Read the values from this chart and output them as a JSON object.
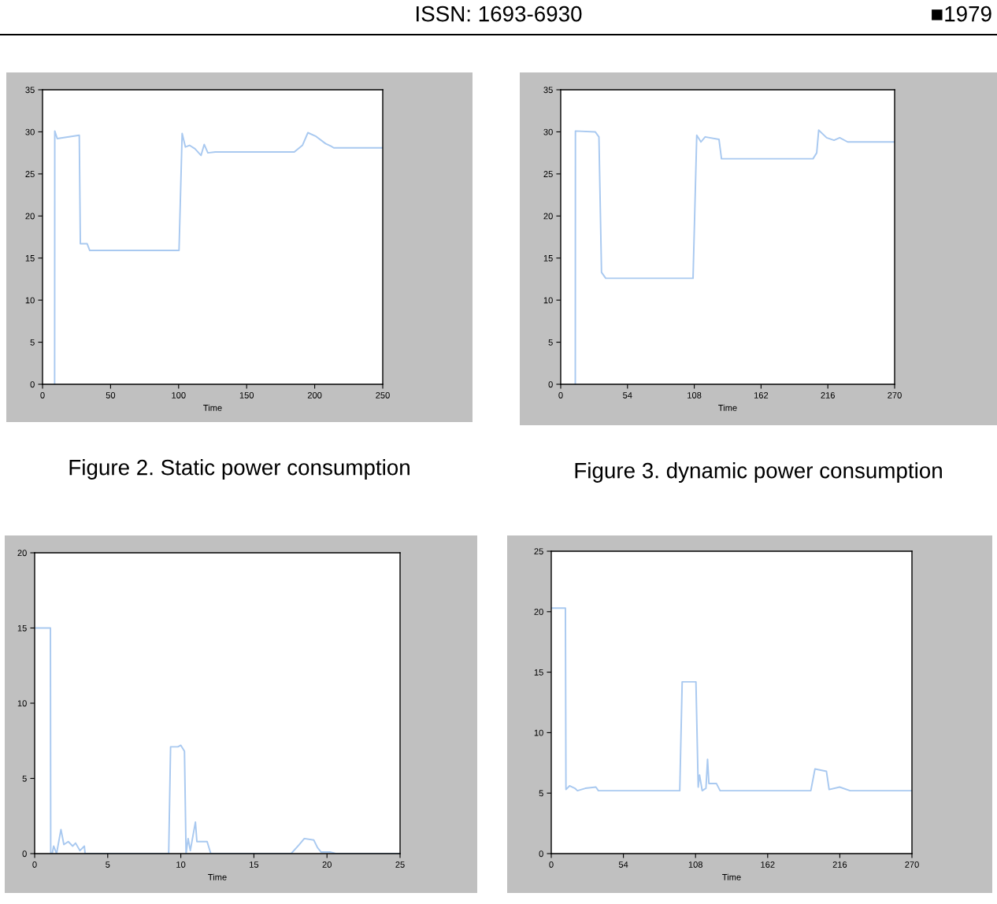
{
  "chart_data": [
    {
      "type": "line",
      "title": "Figure 2. Static power consumption",
      "xlabel": "Time",
      "annotations": [
        "ISSN: 1693-6930",
        "■1979"
      ],
      "xlim": [
        0,
        250
      ],
      "ylim": [
        0,
        35
      ],
      "xticks": [
        0,
        50,
        100,
        150,
        200,
        250
      ],
      "yticks": [
        0,
        5,
        10,
        15,
        20,
        25,
        30,
        35
      ],
      "series": [
        {
          "color": "#a9c9f0",
          "x": [
            8.9,
            9.0,
            10.8,
            27,
            27.8,
            32.8,
            34.7,
            100.3,
            102.6,
            105,
            108,
            112,
            116.5,
            118.8,
            121.5,
            127,
            185,
            191,
            195,
            200.6,
            208,
            212,
            214,
            250
          ],
          "values": [
            0,
            30.1,
            29.2,
            29.6,
            16.7,
            16.7,
            15.9,
            15.9,
            29.8,
            28.2,
            28.4,
            28,
            27.2,
            28.5,
            27.5,
            27.6,
            27.6,
            28.4,
            29.9,
            29.5,
            28.6,
            28.3,
            28.1,
            28.1
          ]
        }
      ]
    },
    {
      "type": "line",
      "title": "Figure 3. dynamic power consumption",
      "xlabel": "Time",
      "xlim": [
        0,
        270
      ],
      "ylim": [
        0,
        35
      ],
      "xticks": [
        0,
        54,
        108,
        162,
        216,
        270
      ],
      "yticks": [
        0,
        5,
        10,
        15,
        20,
        25,
        30,
        35
      ],
      "series": [
        {
          "color": "#a9c9f0",
          "x": [
            11.8,
            11.9,
            27.9,
            30.9,
            33,
            36.4,
            107,
            110,
            113.4,
            116.8,
            128,
            130,
            204,
            207,
            208.6,
            215,
            221,
            225.6,
            232,
            270
          ],
          "values": [
            0,
            30.1,
            30,
            29.4,
            13.3,
            12.6,
            12.6,
            29.6,
            28.8,
            29.4,
            29.1,
            26.8,
            26.8,
            27.5,
            30.2,
            29.3,
            29,
            29.3,
            28.8,
            28.8
          ]
        }
      ]
    },
    {
      "type": "line",
      "xlabel": "Time",
      "xlim": [
        0,
        25
      ],
      "ylim": [
        0,
        20
      ],
      "xticks": [
        0,
        5,
        10,
        15,
        20,
        25
      ],
      "yticks": [
        0,
        5,
        10,
        15,
        20
      ],
      "series": [
        {
          "color": "#a9c9f0",
          "x": [
            0,
            1.08,
            1.1,
            1.2,
            1.3,
            1.5,
            1.8,
            2.0,
            2.3,
            2.6,
            2.8,
            3.1,
            3.4,
            3.45,
            9.17,
            9.3,
            9.8,
            10.0,
            10.25,
            10.36,
            10.5,
            10.65,
            11.0,
            11.1,
            11.8,
            12.05,
            17.55,
            18.1,
            18.45,
            19.1,
            19.35,
            19.6,
            20.25,
            20.6,
            25
          ],
          "values": [
            15,
            15,
            0,
            0,
            0.5,
            0,
            1.6,
            0.6,
            0.8,
            0.5,
            0.7,
            0.2,
            0.5,
            0,
            0,
            7.1,
            7.1,
            7.2,
            6.8,
            0,
            1.0,
            0.2,
            2.1,
            0.8,
            0.8,
            0,
            0,
            0.6,
            1.0,
            0.9,
            0.4,
            0.1,
            0.1,
            0,
            0
          ]
        }
      ]
    },
    {
      "type": "line",
      "xlabel": "Time",
      "xlim": [
        0,
        270
      ],
      "ylim": [
        0,
        25
      ],
      "xticks": [
        0,
        54,
        108,
        162,
        216,
        270
      ],
      "yticks": [
        0,
        5,
        10,
        15,
        20,
        25
      ],
      "series": [
        {
          "color": "#a9c9f0",
          "x": [
            0,
            10.6,
            11,
            13.7,
            17.7,
            19.6,
            25.5,
            33.4,
            35.3,
            96.2,
            98,
            108.3,
            110,
            111,
            113,
            115.8,
            117,
            118,
            123.6,
            126.4,
            194.3,
            197.4,
            206,
            208,
            215.9,
            223.7,
            270
          ],
          "values": [
            20.3,
            20.3,
            5.3,
            5.6,
            5.4,
            5.2,
            5.4,
            5.5,
            5.2,
            5.2,
            14.2,
            14.2,
            5.5,
            6.5,
            5.2,
            5.4,
            7.8,
            5.8,
            5.8,
            5.2,
            5.2,
            7,
            6.8,
            5.3,
            5.5,
            5.2,
            5.2
          ]
        }
      ]
    }
  ]
}
